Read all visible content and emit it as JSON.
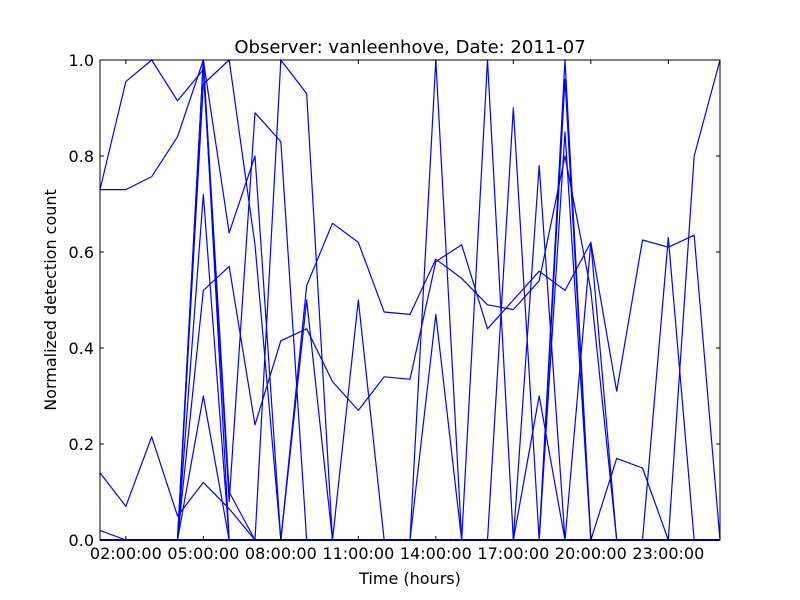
{
  "chart_data": {
    "type": "line",
    "title": "Observer: vanleenhove, Date: 2011-07",
    "xlabel": "Time (hours)",
    "ylabel": "Normalized detection count",
    "xlim": [
      1,
      25
    ],
    "ylim": [
      0,
      1.0
    ],
    "x_ticks": [
      {
        "value": 2,
        "label": "02:00:00"
      },
      {
        "value": 5,
        "label": "05:00:00"
      },
      {
        "value": 8,
        "label": "08:00:00"
      },
      {
        "value": 11,
        "label": "11:00:00"
      },
      {
        "value": 14,
        "label": "14:00:00"
      },
      {
        "value": 17,
        "label": "17:00:00"
      },
      {
        "value": 20,
        "label": "20:00:00"
      },
      {
        "value": 23,
        "label": "23:00:00"
      }
    ],
    "y_ticks": [
      {
        "value": 0.0,
        "label": "0.0"
      },
      {
        "value": 0.2,
        "label": "0.2"
      },
      {
        "value": 0.4,
        "label": "0.4"
      },
      {
        "value": 0.6,
        "label": "0.6"
      },
      {
        "value": 0.8,
        "label": "0.8"
      },
      {
        "value": 1.0,
        "label": "1.0"
      }
    ],
    "grid": false,
    "legend": "none",
    "line_color": "#0000ff",
    "x": [
      1,
      2,
      3,
      4,
      5,
      6,
      7,
      8,
      9,
      10,
      11,
      12,
      13,
      14,
      15,
      16,
      17,
      18,
      19,
      20,
      21,
      22,
      23,
      24,
      25
    ],
    "series": [
      {
        "values": [
          0.73,
          0.955,
          1.0,
          0.915,
          0.98,
          0.08,
          0.89,
          0.83,
          0.0,
          0.0,
          0.0,
          0.0,
          0.0,
          0.0,
          0.0,
          0.0,
          0.0,
          0.0,
          0.0,
          0.0,
          0.0,
          0.0,
          0.0,
          0.0,
          0.0
        ]
      },
      {
        "values": [
          0.73,
          0.73,
          0.757,
          0.84,
          1.0,
          0.1,
          0.0,
          0.0,
          0.0,
          0.0,
          0.0,
          0.0,
          0.0,
          0.0,
          0.0,
          0.0,
          0.0,
          0.0,
          0.0,
          0.0,
          0.0,
          0.0,
          0.0,
          0.0,
          0.0
        ]
      },
      {
        "values": [
          0.14,
          0.07,
          0.215,
          0.05,
          0.12,
          0.065,
          0.0,
          1.0,
          0.93,
          0.0,
          0.0,
          0.0,
          0.0,
          0.0,
          0.0,
          0.0,
          0.0,
          0.0,
          0.0,
          0.0,
          0.0,
          0.0,
          0.0,
          0.0,
          0.0
        ]
      },
      {
        "values": [
          0.02,
          0.0,
          0.0,
          0.0,
          1.0,
          0.64,
          0.8,
          0.0,
          0.0,
          0.0,
          0.0,
          0.0,
          0.0,
          0.0,
          0.0,
          0.0,
          0.0,
          0.0,
          0.0,
          0.0,
          0.0,
          0.0,
          0.0,
          0.0,
          0.0
        ]
      },
      {
        "values": [
          0.0,
          0.0,
          0.0,
          0.0,
          0.95,
          1.0,
          0.615,
          0.0,
          0.0,
          0.0,
          0.0,
          0.0,
          0.0,
          0.0,
          0.0,
          0.0,
          0.0,
          0.0,
          0.0,
          0.0,
          0.0,
          0.0,
          0.0,
          0.0,
          0.0
        ]
      },
      {
        "values": [
          0.0,
          0.0,
          0.0,
          0.0,
          0.52,
          0.57,
          0.24,
          0.415,
          0.44,
          0.33,
          0.27,
          0.34,
          0.335,
          0.58,
          0.615,
          0.44,
          0.5,
          0.56,
          0.52,
          0.62,
          0.31,
          0.625,
          0.61,
          0.635,
          0.0
        ]
      },
      {
        "values": [
          0.0,
          0.0,
          0.0,
          0.0,
          0.0,
          0.0,
          0.0,
          0.0,
          0.53,
          0.66,
          0.62,
          0.475,
          0.47,
          0.585,
          0.545,
          0.49,
          0.48,
          0.54,
          0.8,
          0.52,
          0.0,
          0.0,
          0.0,
          0.0,
          0.0
        ]
      },
      {
        "values": [
          0.0,
          0.0,
          0.0,
          0.0,
          0.0,
          0.0,
          0.0,
          0.0,
          0.0,
          0.0,
          0.0,
          0.0,
          0.0,
          0.0,
          0.0,
          0.0,
          0.0,
          0.0,
          0.0,
          0.0,
          0.17,
          0.15,
          0.0,
          0.8,
          1.0
        ]
      },
      {
        "values": [
          0.0,
          0.0,
          0.0,
          0.0,
          0.0,
          0.0,
          0.0,
          0.0,
          0.0,
          0.0,
          0.0,
          0.0,
          0.0,
          1.0,
          0.0,
          0.0,
          0.0,
          0.0,
          0.0,
          0.0,
          0.0,
          0.0,
          0.0,
          0.0,
          0.0
        ]
      },
      {
        "values": [
          0.0,
          0.0,
          0.0,
          0.0,
          0.0,
          0.0,
          0.0,
          0.0,
          0.0,
          0.0,
          0.0,
          0.0,
          0.0,
          0.0,
          0.0,
          1.0,
          0.0,
          0.0,
          0.0,
          0.0,
          0.0,
          0.0,
          0.0,
          0.0,
          0.0
        ]
      },
      {
        "values": [
          0.0,
          0.0,
          0.0,
          0.0,
          0.0,
          0.0,
          0.0,
          0.0,
          0.0,
          0.0,
          0.0,
          0.0,
          0.0,
          0.0,
          0.0,
          0.0,
          0.9,
          0.0,
          0.0,
          0.0,
          0.0,
          0.0,
          0.0,
          0.0,
          0.0
        ]
      },
      {
        "values": [
          0.0,
          0.0,
          0.0,
          0.0,
          0.0,
          0.0,
          0.0,
          0.0,
          0.0,
          0.0,
          0.0,
          0.0,
          0.0,
          0.0,
          0.0,
          0.0,
          0.0,
          0.0,
          1.0,
          0.0,
          0.0,
          0.0,
          0.0,
          0.0,
          0.0
        ]
      },
      {
        "values": [
          0.0,
          0.0,
          0.0,
          0.0,
          1.0,
          0.0,
          0.0,
          0.0,
          0.0,
          0.0,
          0.0,
          0.0,
          0.0,
          0.0,
          0.0,
          0.0,
          0.0,
          0.0,
          0.0,
          0.0,
          0.0,
          0.0,
          0.0,
          0.0,
          0.0
        ]
      },
      {
        "values": [
          0.0,
          0.0,
          0.0,
          0.0,
          0.72,
          0.0,
          0.0,
          0.0,
          0.0,
          0.0,
          0.0,
          0.0,
          0.0,
          0.0,
          0.0,
          0.0,
          0.0,
          0.0,
          0.0,
          0.0,
          0.0,
          0.0,
          0.0,
          0.0,
          0.0
        ]
      },
      {
        "values": [
          0.0,
          0.0,
          0.0,
          0.0,
          0.3,
          0.0,
          0.0,
          0.0,
          0.0,
          0.0,
          0.0,
          0.0,
          0.0,
          0.0,
          0.0,
          0.0,
          0.0,
          0.0,
          0.0,
          0.0,
          0.0,
          0.0,
          0.0,
          0.0,
          0.0
        ]
      },
      {
        "values": [
          0.0,
          0.0,
          0.0,
          0.0,
          0.0,
          0.0,
          0.0,
          0.0,
          0.5,
          0.0,
          0.0,
          0.0,
          0.0,
          0.0,
          0.0,
          0.0,
          0.0,
          0.0,
          0.0,
          0.0,
          0.0,
          0.0,
          0.0,
          0.0,
          0.0
        ]
      },
      {
        "values": [
          0.0,
          0.0,
          0.0,
          0.0,
          0.0,
          0.0,
          0.0,
          0.0,
          0.0,
          0.0,
          0.5,
          0.0,
          0.0,
          0.0,
          0.0,
          0.0,
          0.0,
          0.0,
          0.0,
          0.0,
          0.0,
          0.0,
          0.0,
          0.0,
          0.0
        ]
      },
      {
        "values": [
          0.0,
          0.0,
          0.0,
          0.0,
          0.0,
          0.0,
          0.0,
          0.0,
          0.0,
          0.0,
          0.0,
          0.0,
          0.0,
          0.0,
          0.0,
          0.0,
          0.0,
          0.3,
          0.0,
          0.0,
          0.0,
          0.0,
          0.0,
          0.0,
          0.0
        ]
      },
      {
        "values": [
          0.0,
          0.0,
          0.0,
          0.0,
          0.0,
          0.0,
          0.0,
          0.0,
          0.0,
          0.0,
          0.0,
          0.0,
          0.0,
          0.0,
          0.0,
          0.0,
          0.0,
          0.0,
          0.85,
          0.0,
          0.0,
          0.0,
          0.0,
          0.0,
          0.0
        ]
      },
      {
        "values": [
          0.0,
          0.0,
          0.0,
          0.0,
          0.0,
          0.0,
          0.0,
          0.0,
          0.0,
          0.0,
          0.0,
          0.0,
          0.0,
          0.0,
          0.0,
          0.0,
          0.0,
          0.0,
          0.96,
          0.0,
          0.0,
          0.0,
          0.0,
          0.0,
          0.0
        ]
      },
      {
        "values": [
          0.0,
          0.0,
          0.0,
          0.0,
          0.0,
          0.0,
          0.0,
          0.0,
          0.0,
          0.0,
          0.0,
          0.0,
          0.0,
          0.0,
          0.0,
          0.0,
          0.0,
          0.78,
          0.0,
          0.0,
          0.0,
          0.0,
          0.0,
          0.0,
          0.0
        ]
      },
      {
        "values": [
          0.0,
          0.0,
          0.0,
          0.0,
          0.0,
          0.0,
          0.0,
          0.0,
          0.0,
          0.0,
          0.0,
          0.0,
          0.0,
          0.0,
          0.0,
          0.0,
          0.0,
          0.0,
          0.0,
          0.62,
          0.0,
          0.0,
          0.0,
          0.0,
          0.0
        ]
      },
      {
        "values": [
          0.0,
          0.0,
          0.0,
          0.0,
          0.0,
          0.0,
          0.0,
          0.0,
          0.0,
          0.0,
          0.0,
          0.0,
          0.0,
          0.0,
          0.0,
          0.0,
          0.0,
          0.0,
          0.0,
          0.0,
          0.0,
          0.0,
          0.63,
          0.0,
          0.0
        ]
      },
      {
        "values": [
          0.0,
          0.0,
          0.0,
          0.0,
          0.0,
          0.0,
          0.0,
          0.0,
          0.0,
          0.0,
          0.0,
          0.0,
          0.0,
          0.47,
          0.0,
          0.0,
          0.0,
          0.0,
          0.0,
          0.0,
          0.0,
          0.0,
          0.0,
          0.0,
          0.0
        ]
      },
      {
        "values": [
          0.0,
          0.0,
          0.0,
          0.0,
          0.0,
          0.0,
          0.0,
          0.0,
          0.0,
          0.0,
          0.0,
          0.0,
          0.0,
          0.0,
          0.0,
          0.0,
          0.0,
          0.0,
          0.0,
          0.0,
          0.0,
          0.0,
          0.0,
          0.0,
          0.0
        ]
      }
    ]
  }
}
